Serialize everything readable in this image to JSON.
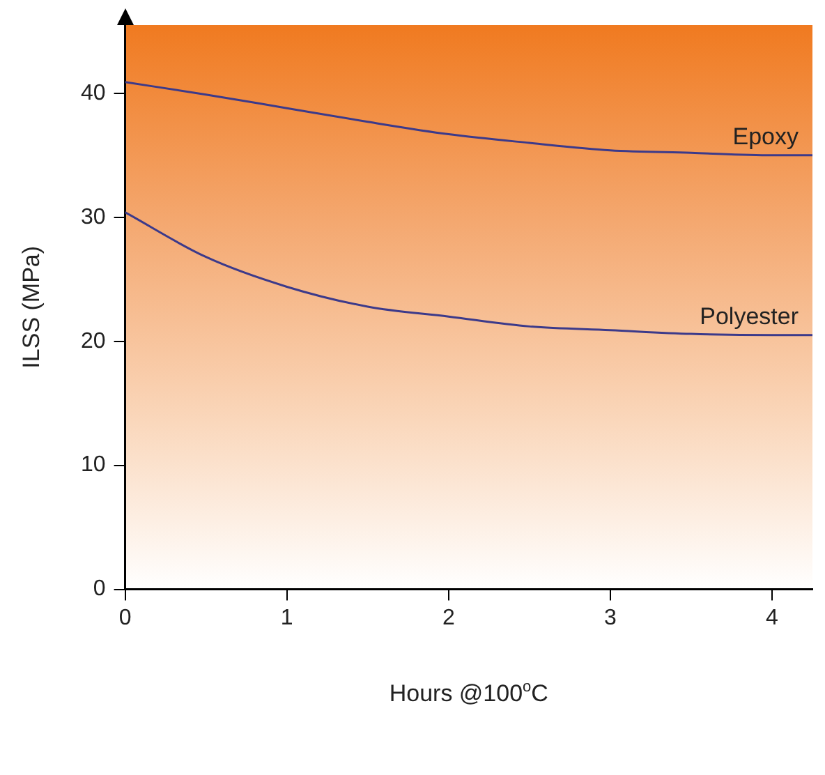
{
  "chart_data": {
    "type": "line",
    "xlabel": "Hours @100$^{o}$C",
    "ylabel": "ILSS (MPa)",
    "xlim": [
      0,
      4.25
    ],
    "xticks": [
      0,
      1,
      2,
      3,
      4
    ],
    "ylim": [
      0,
      45.5
    ],
    "yticks": [
      0,
      10,
      20,
      30,
      40
    ],
    "grid": false,
    "legend": false,
    "marker": "none",
    "line_style": "solid",
    "series": [
      {
        "name": "Epoxy",
        "color": "#3c3a8a",
        "x": [
          0,
          0.5,
          1,
          1.5,
          2,
          2.5,
          3,
          3.5,
          4,
          4.25
        ],
        "values": [
          40.9,
          39.9,
          38.8,
          37.7,
          36.7,
          36.0,
          35.4,
          35.2,
          35.0,
          35.0
        ]
      },
      {
        "name": "Polyester",
        "color": "#3c3a8a",
        "x": [
          0,
          0.5,
          1,
          1.5,
          2,
          2.5,
          3,
          3.5,
          4,
          4.25
        ],
        "values": [
          30.4,
          26.8,
          24.4,
          22.8,
          22.0,
          21.2,
          20.9,
          20.6,
          20.5,
          20.5
        ]
      }
    ]
  }
}
